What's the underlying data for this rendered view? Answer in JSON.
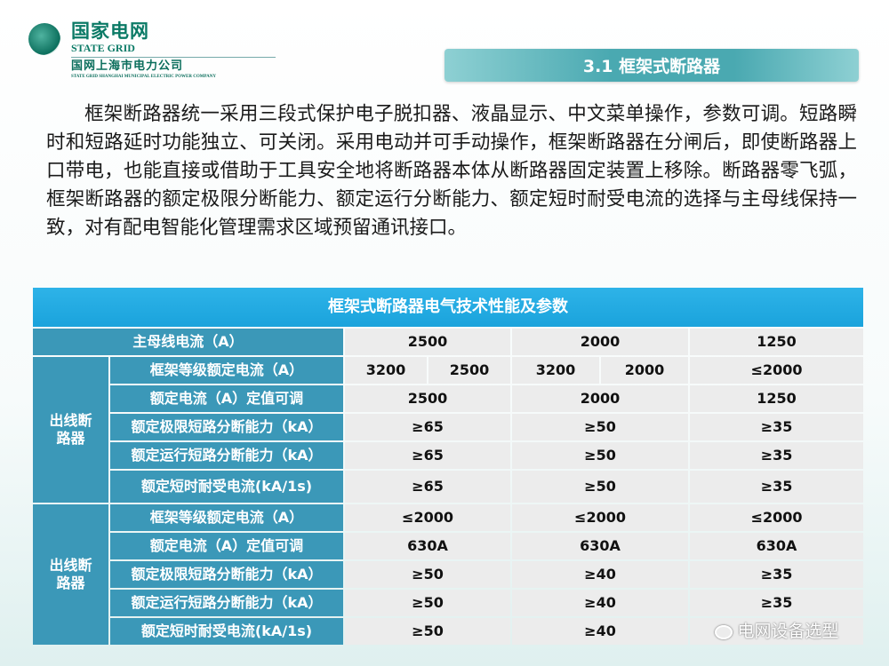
{
  "logo": {
    "brand_cn": "国家电网",
    "brand_en": "STATE GRID",
    "company_cn": "国网上海市电力公司",
    "company_en": "STATE GRID SHANGHAI MUNICIPAL ELECTRIC POWER COMPANY"
  },
  "section_title": "3.1 框架式断路器",
  "paragraph": "框架断路器统一采用三段式保护电子脱扣器、液晶显示、中文菜单操作，参数可调。短路瞬时和短路延时功能独立、可关闭。采用电动并可手动操作，框架断路器在分闸后，即使断路器上口带电，也能直接或借助于工具安全地将断路器本体从断路器固定装置上移除。断路器零飞弧，框架断路器的额定极限分断能力、额定运行分断能力、额定短时耐受电流的选择与主母线保持一致，对有配电智能化管理需求区域预留通讯接口。",
  "table": {
    "title": "框架式断路器电气技术性能及参数",
    "main_bus": {
      "label": "主母线电流（A）",
      "values": [
        "2500",
        "2000",
        "1250"
      ]
    },
    "group1": {
      "label": "出线断路器",
      "rows": [
        {
          "label": "框架等级额定电流（A）",
          "values": [
            "3200",
            "2500",
            "3200",
            "2000",
            "≤2000"
          ]
        },
        {
          "label": "额定电流（A）定值可调",
          "values": [
            "2500",
            "2000",
            "1250"
          ]
        },
        {
          "label": "额定极限短路分断能力（kA）",
          "values": [
            "≥65",
            "≥50",
            "≥35"
          ]
        },
        {
          "label": "额定运行短路分断能力（kA）",
          "values": [
            "≥65",
            "≥50",
            "≥35"
          ]
        },
        {
          "label": "额定短时耐受电流(kA/1s)",
          "values": [
            "≥65",
            "≥50",
            "≥35"
          ]
        }
      ]
    },
    "group2": {
      "label": "出线断路器",
      "rows": [
        {
          "label": "框架等级额定电流（A）",
          "values": [
            "≤2000",
            "≤2000",
            "≤2000"
          ]
        },
        {
          "label": "额定电流（A）定值可调",
          "values": [
            "630A",
            "630A",
            "630A"
          ]
        },
        {
          "label": "额定极限短路分断能力（kA）",
          "values": [
            "≥50",
            "≥40",
            "≥35"
          ]
        },
        {
          "label": "额定运行短路分断能力（kA）",
          "values": [
            "≥50",
            "≥40",
            "≥35"
          ]
        },
        {
          "label": "额定短时耐受电流(kA/1s)",
          "values": [
            "≥50",
            "≥40",
            ""
          ]
        }
      ]
    }
  },
  "watermark": "电网设备选型",
  "colors": {
    "label_bg": "#3b98b8",
    "title_bg": "#1aa3dc",
    "value_bg": "#ececec",
    "brand": "#0b7a66"
  }
}
